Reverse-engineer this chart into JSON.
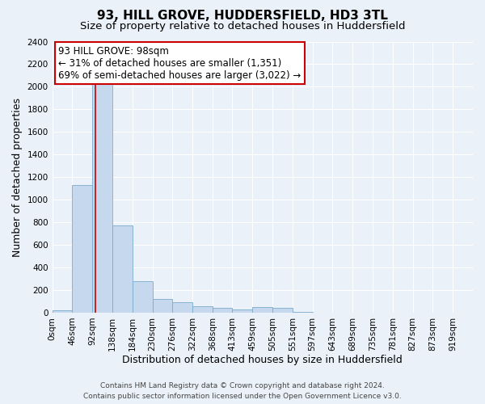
{
  "title": "93, HILL GROVE, HUDDERSFIELD, HD3 3TL",
  "subtitle": "Size of property relative to detached houses in Huddersfield",
  "xlabel": "Distribution of detached houses by size in Huddersfield",
  "ylabel": "Number of detached properties",
  "footer_line1": "Contains HM Land Registry data © Crown copyright and database right 2024.",
  "footer_line2": "Contains public sector information licensed under the Open Government Licence v3.0.",
  "annotation_line1": "93 HILL GROVE: 98sqm",
  "annotation_line2": "← 31% of detached houses are smaller (1,351)",
  "annotation_line3": "69% of semi-detached houses are larger (3,022) →",
  "bar_color": "#c5d8ed",
  "bar_edge_color": "#7aaccc",
  "vline_color": "#cc0000",
  "vline_x": 98,
  "bin_edges": [
    0,
    46,
    92,
    138,
    184,
    230,
    276,
    322,
    368,
    413,
    459,
    505,
    551,
    597,
    643,
    689,
    735,
    781,
    827,
    873,
    919,
    965
  ],
  "bar_heights": [
    20,
    1130,
    2100,
    770,
    280,
    120,
    90,
    55,
    40,
    30,
    50,
    40,
    5,
    2,
    2,
    1,
    1,
    1,
    1,
    1,
    0
  ],
  "ylim": [
    0,
    2400
  ],
  "yticks": [
    0,
    200,
    400,
    600,
    800,
    1000,
    1200,
    1400,
    1600,
    1800,
    2000,
    2200,
    2400
  ],
  "xtick_labels": [
    "0sqm",
    "46sqm",
    "92sqm",
    "138sqm",
    "184sqm",
    "230sqm",
    "276sqm",
    "322sqm",
    "368sqm",
    "413sqm",
    "459sqm",
    "505sqm",
    "551sqm",
    "597sqm",
    "643sqm",
    "689sqm",
    "735sqm",
    "781sqm",
    "827sqm",
    "873sqm",
    "919sqm"
  ],
  "xtick_positions": [
    0,
    46,
    92,
    138,
    184,
    230,
    276,
    322,
    368,
    413,
    459,
    505,
    551,
    597,
    643,
    689,
    735,
    781,
    827,
    873,
    919
  ],
  "bg_color": "#eaf1f8",
  "plot_bg_color": "#eaf1f8",
  "grid_color": "#ffffff",
  "annotation_box_color": "#ffffff",
  "annotation_border_color": "#cc0000",
  "title_fontsize": 11,
  "subtitle_fontsize": 9.5,
  "axis_label_fontsize": 9,
  "tick_fontsize": 7.5,
  "annotation_fontsize": 8.5,
  "footer_fontsize": 6.5
}
